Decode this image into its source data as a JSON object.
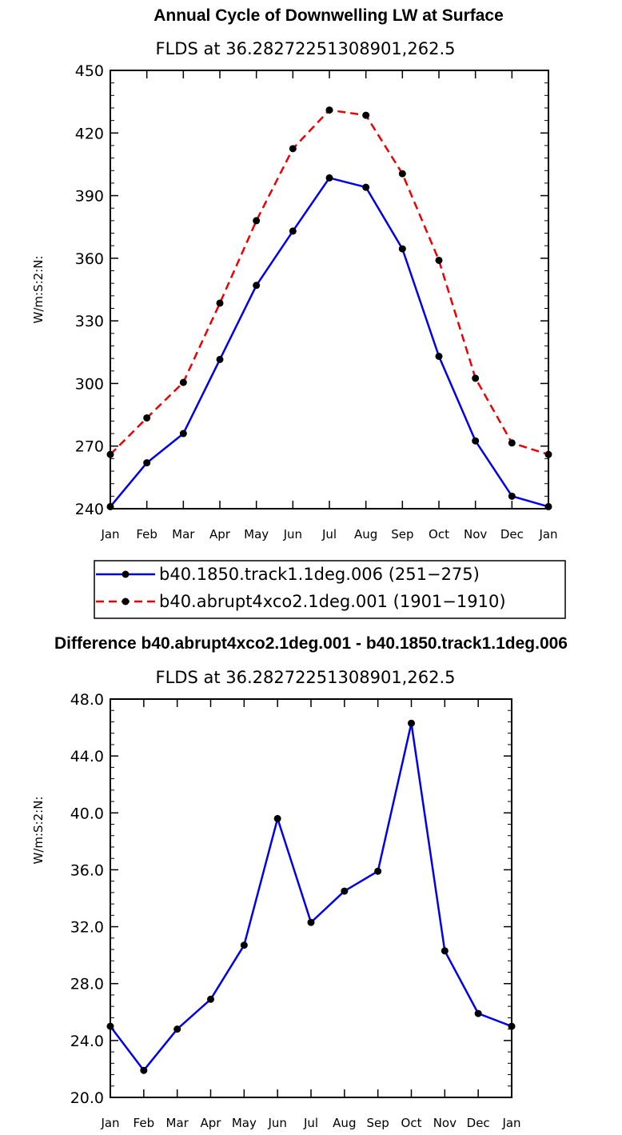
{
  "chart_data": [
    {
      "type": "line",
      "title": "Annual Cycle of Downwelling LW at Surface",
      "subtitle": "FLDS at 36.28272251308901,262.5",
      "ylabel": "W/m:S:2:N:",
      "xlabel": "",
      "categories": [
        "Jan",
        "Feb",
        "Mar",
        "Apr",
        "May",
        "Jun",
        "Jul",
        "Aug",
        "Sep",
        "Oct",
        "Nov",
        "Dec",
        "Jan"
      ],
      "ylim": [
        240,
        450
      ],
      "yticks": [
        "240",
        "270",
        "300",
        "330",
        "360",
        "390",
        "420",
        "450"
      ],
      "series": [
        {
          "name": "b40.1850.track1.1deg.006 (251−275)",
          "color": "#0000ee",
          "dash": "solid",
          "values": [
            241,
            262,
            276,
            311.5,
            347,
            373,
            398.5,
            394,
            364.5,
            313,
            272.5,
            246,
            241
          ]
        },
        {
          "name": "b40.abrupt4xco2.1deg.001 (1901−1910)",
          "color": "#ee0000",
          "dash": "dashed",
          "values": [
            266,
            283.5,
            300.5,
            338.5,
            378,
            412.5,
            431,
            428.5,
            400.5,
            359,
            302.5,
            271.5,
            266
          ]
        }
      ]
    },
    {
      "type": "line",
      "title": "Difference b40.abrupt4xco2.1deg.001 - b40.1850.track1.1deg.006",
      "subtitle": "FLDS at 36.28272251308901,262.5",
      "ylabel": "W/m:S:2:N:",
      "xlabel": "",
      "categories": [
        "Jan",
        "Feb",
        "Mar",
        "Apr",
        "May",
        "Jun",
        "Jul",
        "Aug",
        "Sep",
        "Oct",
        "Nov",
        "Dec",
        "Jan"
      ],
      "ylim": [
        20,
        48
      ],
      "yticks": [
        "20.0",
        "24.0",
        "28.0",
        "32.0",
        "36.0",
        "40.0",
        "44.0",
        "48.0"
      ],
      "series": [
        {
          "name": "Difference",
          "color": "#0000ee",
          "dash": "solid",
          "values": [
            25.0,
            21.9,
            24.8,
            26.9,
            30.7,
            39.6,
            32.3,
            34.5,
            35.9,
            46.3,
            30.3,
            25.9,
            25.0
          ]
        }
      ]
    }
  ]
}
